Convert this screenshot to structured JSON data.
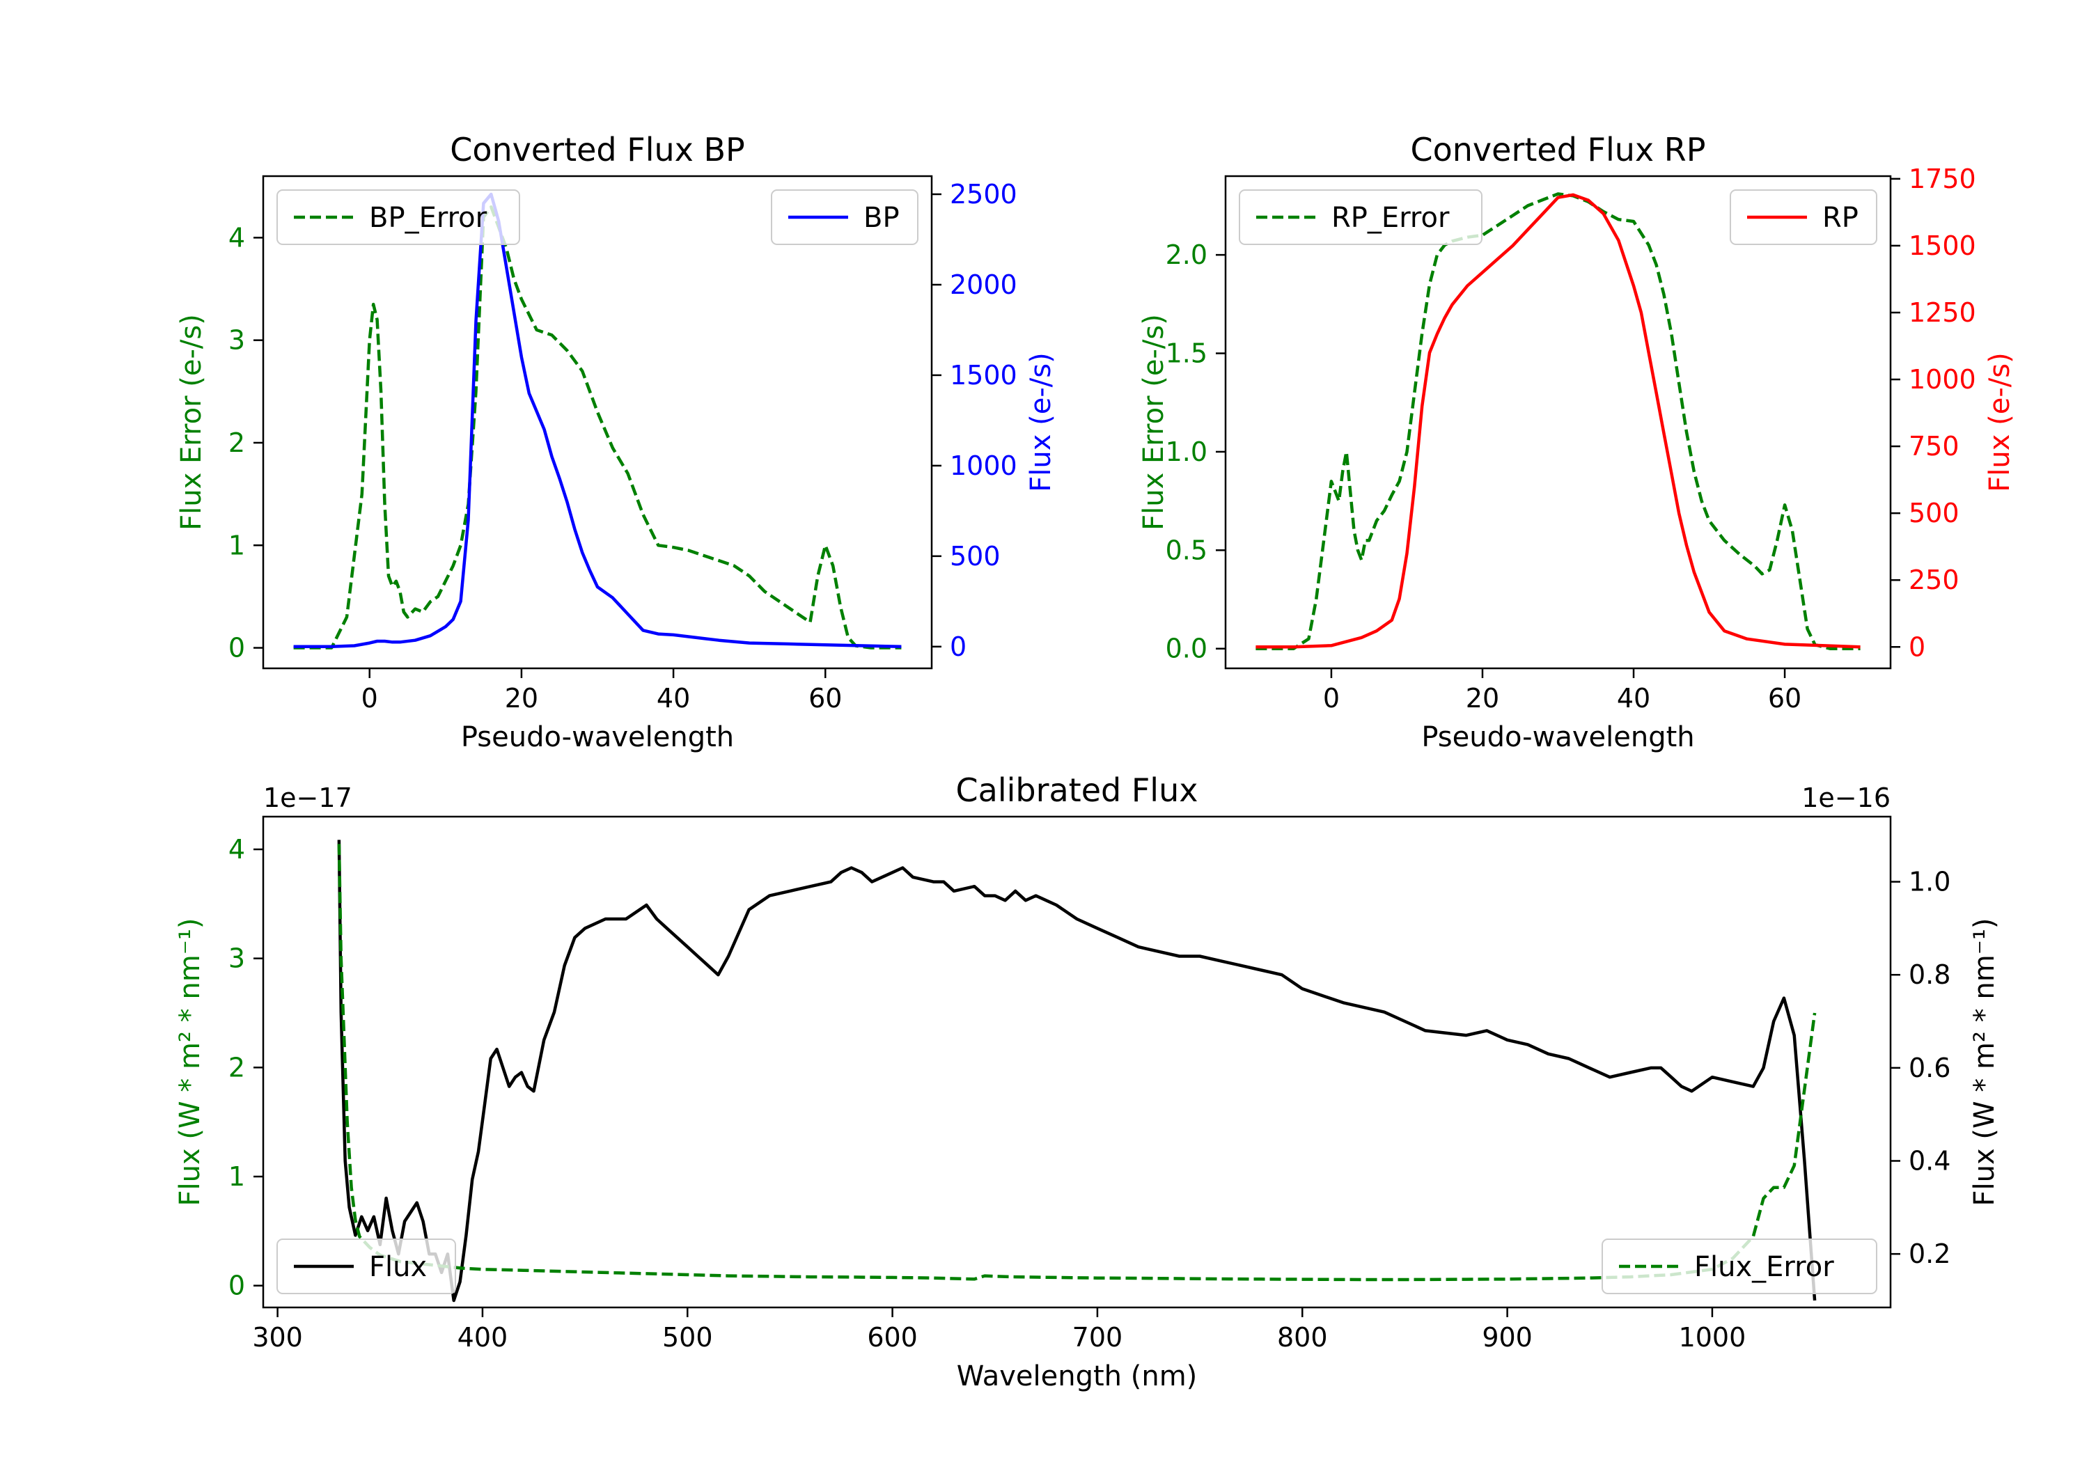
{
  "colors": {
    "bp": "#0000ff",
    "rp": "#ff0000",
    "error": "#008000",
    "flux": "#000000",
    "axis": "#000000"
  },
  "chart_data": [
    {
      "id": "bp",
      "type": "line",
      "title": "Converted Flux BP",
      "xlabel": "Pseudo-wavelength",
      "ylabel_left": "Flux Error (e-/s)",
      "ylabel_right": "Flux (e-/s)",
      "xlim": [
        -14,
        74
      ],
      "ylim_left": [
        -0.2,
        4.6
      ],
      "ylim_right": [
        -120,
        2600
      ],
      "xticks": [
        0,
        20,
        40,
        60
      ],
      "yticks_left": [
        0,
        1,
        2,
        3,
        4
      ],
      "yticks_right": [
        0,
        500,
        1000,
        1500,
        2000,
        2500
      ],
      "series": [
        {
          "name": "BP_Error",
          "axis": "left",
          "style": "dashed",
          "color": "#008000",
          "x": [
            -10,
            -5,
            -3,
            -1,
            0,
            0.5,
            1,
            1.5,
            2,
            2.5,
            3,
            3.5,
            4,
            4.5,
            5,
            6,
            7,
            8,
            9,
            10,
            11,
            12,
            13,
            14,
            15,
            16,
            17,
            18,
            19,
            20,
            22,
            24,
            26,
            28,
            30,
            32,
            34,
            36,
            38,
            40,
            42,
            44,
            46,
            48,
            50,
            52,
            55,
            57,
            58,
            59,
            60,
            61,
            62,
            63,
            64,
            66,
            68,
            70
          ],
          "y": [
            0,
            0,
            0.3,
            1.5,
            3.0,
            3.35,
            3.2,
            2.5,
            1.4,
            0.7,
            0.6,
            0.65,
            0.55,
            0.35,
            0.3,
            0.38,
            0.35,
            0.45,
            0.5,
            0.65,
            0.8,
            1.0,
            1.4,
            2.5,
            4.2,
            4.3,
            4.1,
            3.9,
            3.6,
            3.4,
            3.1,
            3.05,
            2.9,
            2.7,
            2.3,
            1.95,
            1.7,
            1.3,
            1.0,
            0.98,
            0.95,
            0.9,
            0.85,
            0.8,
            0.7,
            0.55,
            0.4,
            0.3,
            0.25,
            0.7,
            1.0,
            0.8,
            0.4,
            0.1,
            0.02,
            0,
            0,
            0
          ]
        },
        {
          "name": "BP",
          "axis": "right",
          "style": "solid",
          "color": "#0000ff",
          "x": [
            -10,
            -5,
            -2,
            0,
            1,
            2,
            3,
            4,
            6,
            8,
            10,
            11,
            12,
            13,
            14,
            15,
            16,
            17,
            18,
            19,
            20,
            21,
            22,
            23,
            24,
            25,
            26,
            27,
            28,
            29,
            30,
            31,
            32,
            34,
            36,
            38,
            40,
            42,
            44,
            46,
            50,
            55,
            60,
            65,
            70
          ],
          "y": [
            0,
            0,
            5,
            20,
            30,
            30,
            25,
            25,
            35,
            60,
            110,
            150,
            250,
            700,
            1800,
            2450,
            2500,
            2350,
            2100,
            1850,
            1600,
            1400,
            1300,
            1200,
            1050,
            930,
            800,
            650,
            520,
            420,
            330,
            300,
            270,
            180,
            90,
            70,
            65,
            55,
            45,
            35,
            20,
            15,
            10,
            5,
            0
          ]
        }
      ]
    },
    {
      "id": "rp",
      "type": "line",
      "title": "Converted Flux RP",
      "xlabel": "Pseudo-wavelength",
      "ylabel_left": "Flux Error (e-/s)",
      "ylabel_right": "Flux (e-/s)",
      "xlim": [
        -14,
        74
      ],
      "ylim_left": [
        -0.1,
        2.4
      ],
      "ylim_right": [
        -80,
        1760
      ],
      "xticks": [
        0,
        20,
        40,
        60
      ],
      "yticks_left": [
        0.0,
        0.5,
        1.0,
        1.5,
        2.0
      ],
      "yticks_left_labels": [
        "0.0",
        "0.5",
        "1.0",
        "1.5",
        "2.0"
      ],
      "yticks_right": [
        0,
        250,
        500,
        750,
        1000,
        1250,
        1500,
        1750
      ],
      "series": [
        {
          "name": "RP_Error",
          "axis": "left",
          "style": "dashed",
          "color": "#008000",
          "x": [
            -10,
            -5,
            -3,
            -2,
            -1,
            0,
            0.5,
            1,
            1.5,
            2,
            2.5,
            3,
            3.5,
            4,
            4.5,
            5,
            6,
            7,
            8,
            9,
            10,
            11,
            12,
            13,
            14,
            15,
            16,
            18,
            20,
            22,
            24,
            26,
            28,
            30,
            32,
            34,
            36,
            38,
            40,
            42,
            43,
            44,
            45,
            46,
            47,
            48,
            49,
            50,
            52,
            54,
            56,
            57,
            58,
            59,
            60,
            61,
            62,
            63,
            64,
            66,
            68,
            70
          ],
          "y": [
            0,
            0,
            0.05,
            0.25,
            0.55,
            0.85,
            0.8,
            0.75,
            0.9,
            1.0,
            0.8,
            0.6,
            0.5,
            0.45,
            0.55,
            0.55,
            0.65,
            0.7,
            0.78,
            0.85,
            1.0,
            1.3,
            1.6,
            1.85,
            2.0,
            2.05,
            2.07,
            2.09,
            2.1,
            2.15,
            2.2,
            2.25,
            2.28,
            2.31,
            2.3,
            2.27,
            2.22,
            2.18,
            2.17,
            2.05,
            1.95,
            1.8,
            1.6,
            1.35,
            1.1,
            0.9,
            0.75,
            0.65,
            0.55,
            0.48,
            0.42,
            0.38,
            0.4,
            0.55,
            0.73,
            0.6,
            0.35,
            0.1,
            0.02,
            0,
            0,
            0
          ]
        },
        {
          "name": "RP",
          "axis": "right",
          "style": "solid",
          "color": "#ff0000",
          "x": [
            -10,
            -5,
            0,
            2,
            4,
            6,
            8,
            9,
            10,
            11,
            12,
            13,
            14,
            15,
            16,
            18,
            20,
            22,
            24,
            26,
            28,
            30,
            32,
            34,
            36,
            38,
            40,
            41,
            42,
            43,
            44,
            45,
            46,
            47,
            48,
            50,
            52,
            55,
            60,
            65,
            70
          ],
          "y": [
            0,
            0,
            5,
            20,
            35,
            60,
            100,
            180,
            350,
            600,
            900,
            1100,
            1170,
            1230,
            1280,
            1350,
            1400,
            1450,
            1500,
            1560,
            1620,
            1680,
            1690,
            1670,
            1620,
            1520,
            1350,
            1250,
            1100,
            950,
            800,
            650,
            500,
            380,
            280,
            130,
            60,
            30,
            10,
            5,
            0
          ]
        }
      ]
    },
    {
      "id": "calibrated",
      "type": "line",
      "title": "Calibrated Flux",
      "xlabel": "Wavelength (nm)",
      "ylabel_left": "Flux (W * m² * nm⁻¹)",
      "ylabel_right": "Flux (W * m² * nm⁻¹)",
      "offset_left": "1e−17",
      "offset_right": "1e−16",
      "xlim": [
        293,
        1087
      ],
      "ylim_left": [
        -0.2,
        4.3
      ],
      "ylim_right": [
        0.085,
        1.14
      ],
      "xticks": [
        300,
        400,
        500,
        600,
        700,
        800,
        900,
        1000
      ],
      "yticks_left": [
        0,
        1,
        2,
        3,
        4
      ],
      "yticks_right": [
        0.2,
        0.4,
        0.6,
        0.8,
        1.0
      ],
      "yticks_right_labels": [
        "0.2",
        "0.4",
        "0.6",
        "0.8",
        "1.0"
      ],
      "series": [
        {
          "name": "Flux",
          "axis": "right",
          "style": "solid",
          "color": "#000000",
          "x": [
            330,
            331,
            333,
            335,
            338,
            341,
            344,
            347,
            350,
            353,
            356,
            359,
            362,
            365,
            368,
            371,
            374,
            377,
            380,
            383,
            386,
            389,
            392,
            395,
            398,
            401,
            404,
            407,
            410,
            413,
            416,
            419,
            422,
            425,
            430,
            435,
            440,
            445,
            450,
            460,
            470,
            480,
            485,
            490,
            500,
            505,
            510,
            515,
            520,
            530,
            540,
            550,
            560,
            570,
            575,
            580,
            585,
            590,
            600,
            605,
            610,
            620,
            625,
            630,
            640,
            645,
            650,
            655,
            660,
            665,
            670,
            675,
            680,
            690,
            700,
            710,
            720,
            730,
            740,
            750,
            760,
            770,
            780,
            790,
            800,
            820,
            840,
            850,
            860,
            880,
            890,
            900,
            910,
            920,
            930,
            940,
            950,
            960,
            970,
            975,
            980,
            985,
            990,
            1000,
            1010,
            1020,
            1025,
            1030,
            1035,
            1040,
            1045,
            1050
          ],
          "y": [
            1.09,
            0.72,
            0.4,
            0.3,
            0.24,
            0.28,
            0.25,
            0.28,
            0.22,
            0.32,
            0.25,
            0.2,
            0.27,
            0.29,
            0.31,
            0.27,
            0.2,
            0.2,
            0.16,
            0.2,
            0.1,
            0.14,
            0.24,
            0.36,
            0.42,
            0.52,
            0.62,
            0.64,
            0.6,
            0.56,
            0.58,
            0.59,
            0.56,
            0.55,
            0.66,
            0.72,
            0.82,
            0.88,
            0.9,
            0.92,
            0.92,
            0.95,
            0.92,
            0.9,
            0.86,
            0.84,
            0.82,
            0.8,
            0.84,
            0.94,
            0.97,
            0.98,
            0.99,
            1.0,
            1.02,
            1.03,
            1.02,
            1.0,
            1.02,
            1.03,
            1.01,
            1.0,
            1.0,
            0.98,
            0.99,
            0.97,
            0.97,
            0.96,
            0.98,
            0.96,
            0.97,
            0.96,
            0.95,
            0.92,
            0.9,
            0.88,
            0.86,
            0.85,
            0.84,
            0.84,
            0.83,
            0.82,
            0.81,
            0.8,
            0.77,
            0.74,
            0.72,
            0.7,
            0.68,
            0.67,
            0.68,
            0.66,
            0.65,
            0.63,
            0.62,
            0.6,
            0.58,
            0.59,
            0.6,
            0.6,
            0.58,
            0.56,
            0.55,
            0.58,
            0.57,
            0.56,
            0.6,
            0.7,
            0.75,
            0.67,
            0.4,
            0.1
          ]
        },
        {
          "name": "Flux_Error",
          "axis": "left",
          "style": "dashed",
          "color": "#008000",
          "x": [
            330,
            331,
            332,
            334,
            336,
            338,
            340,
            345,
            350,
            360,
            370,
            380,
            390,
            400,
            420,
            440,
            460,
            480,
            500,
            520,
            540,
            560,
            580,
            600,
            620,
            640,
            645,
            650,
            660,
            680,
            700,
            720,
            740,
            760,
            780,
            800,
            820,
            840,
            860,
            880,
            900,
            920,
            940,
            960,
            980,
            1000,
            1010,
            1020,
            1025,
            1030,
            1035,
            1040,
            1045,
            1050
          ],
          "y": [
            4.05,
            3.0,
            2.5,
            1.5,
            0.9,
            0.6,
            0.45,
            0.35,
            0.28,
            0.22,
            0.2,
            0.18,
            0.16,
            0.15,
            0.14,
            0.13,
            0.12,
            0.11,
            0.1,
            0.09,
            0.085,
            0.08,
            0.078,
            0.075,
            0.07,
            0.06,
            0.09,
            0.085,
            0.08,
            0.075,
            0.07,
            0.068,
            0.065,
            0.062,
            0.06,
            0.058,
            0.056,
            0.055,
            0.056,
            0.058,
            0.06,
            0.065,
            0.07,
            0.08,
            0.1,
            0.15,
            0.25,
            0.45,
            0.8,
            0.9,
            0.9,
            1.1,
            1.8,
            2.5
          ]
        }
      ]
    }
  ]
}
